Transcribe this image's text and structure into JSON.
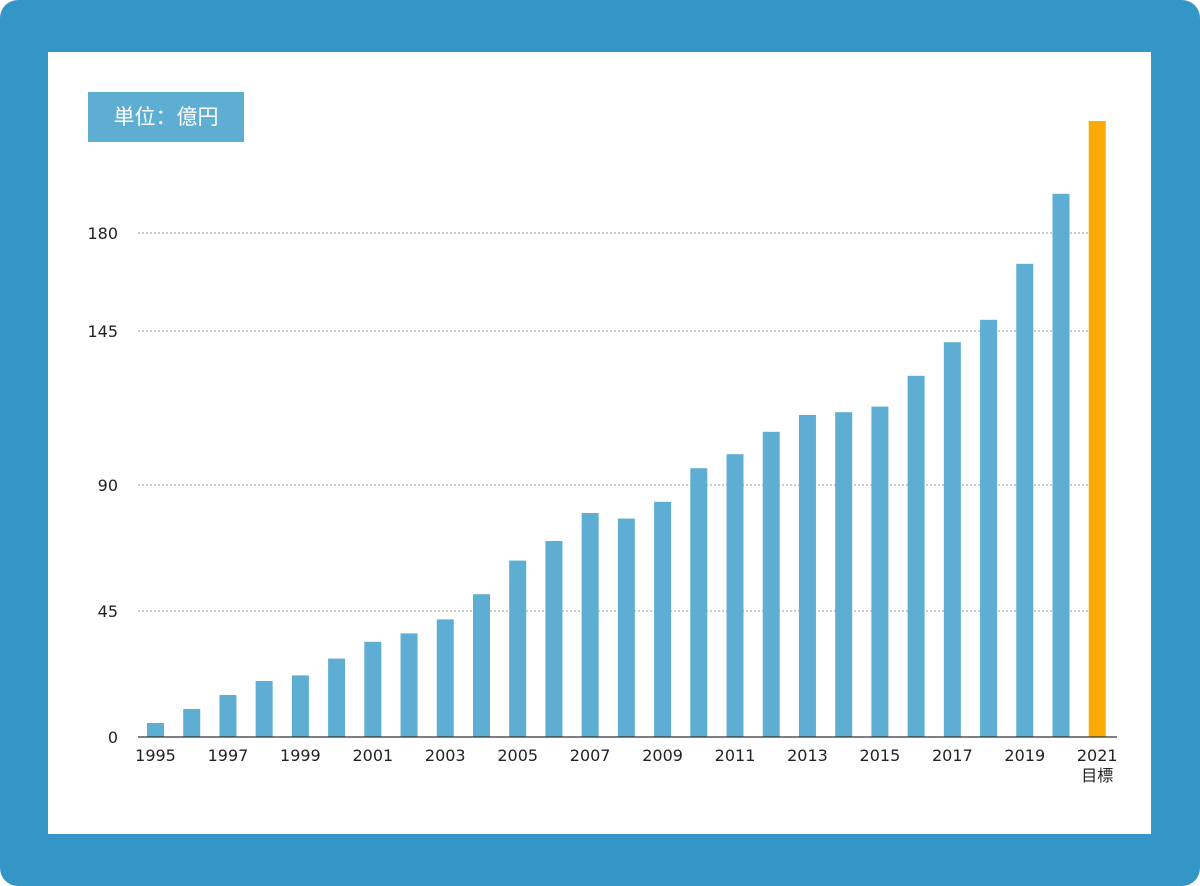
{
  "unit_label": "単位：億円",
  "colors": {
    "frame": "#3396c6",
    "bar": "#5eaed3",
    "highlight_bar": "#fbab05",
    "grid": "#9a9a9a",
    "axis": "#333333"
  },
  "chart_data": {
    "type": "bar",
    "title": "",
    "xlabel": "",
    "ylabel": "",
    "unit": "単位：億円",
    "categories": [
      "1995",
      "1996",
      "1997",
      "1998",
      "1999",
      "2000",
      "2001",
      "2002",
      "2003",
      "2004",
      "2005",
      "2006",
      "2007",
      "2008",
      "2009",
      "2010",
      "2011",
      "2012",
      "2013",
      "2014",
      "2015",
      "2016",
      "2017",
      "2018",
      "2019",
      "2020",
      "2021"
    ],
    "x_tick_labels": [
      {
        "category": "1995",
        "text": "1995"
      },
      {
        "category": "1997",
        "text": "1997"
      },
      {
        "category": "1999",
        "text": "1999"
      },
      {
        "category": "2001",
        "text": "2001"
      },
      {
        "category": "2003",
        "text": "2003"
      },
      {
        "category": "2005",
        "text": "2005"
      },
      {
        "category": "2007",
        "text": "2007"
      },
      {
        "category": "2009",
        "text": "2009"
      },
      {
        "category": "2011",
        "text": "2011"
      },
      {
        "category": "2013",
        "text": "2013"
      },
      {
        "category": "2015",
        "text": "2015"
      },
      {
        "category": "2017",
        "text": "2017"
      },
      {
        "category": "2019",
        "text": "2019"
      },
      {
        "category": "2021",
        "text": "2021",
        "sub": "目標"
      }
    ],
    "values": [
      5,
      10,
      15,
      20,
      22,
      28,
      34,
      37,
      42,
      51,
      63,
      70,
      80,
      78,
      84,
      96,
      101,
      109,
      115,
      116,
      118,
      129,
      141,
      149,
      169,
      194,
      220
    ],
    "highlight_index": 26,
    "y_ticks": [
      0,
      45,
      90,
      145,
      180
    ],
    "ylim": [
      0,
      220
    ],
    "grid": true,
    "grid_style": "dotted",
    "legend": "none"
  }
}
